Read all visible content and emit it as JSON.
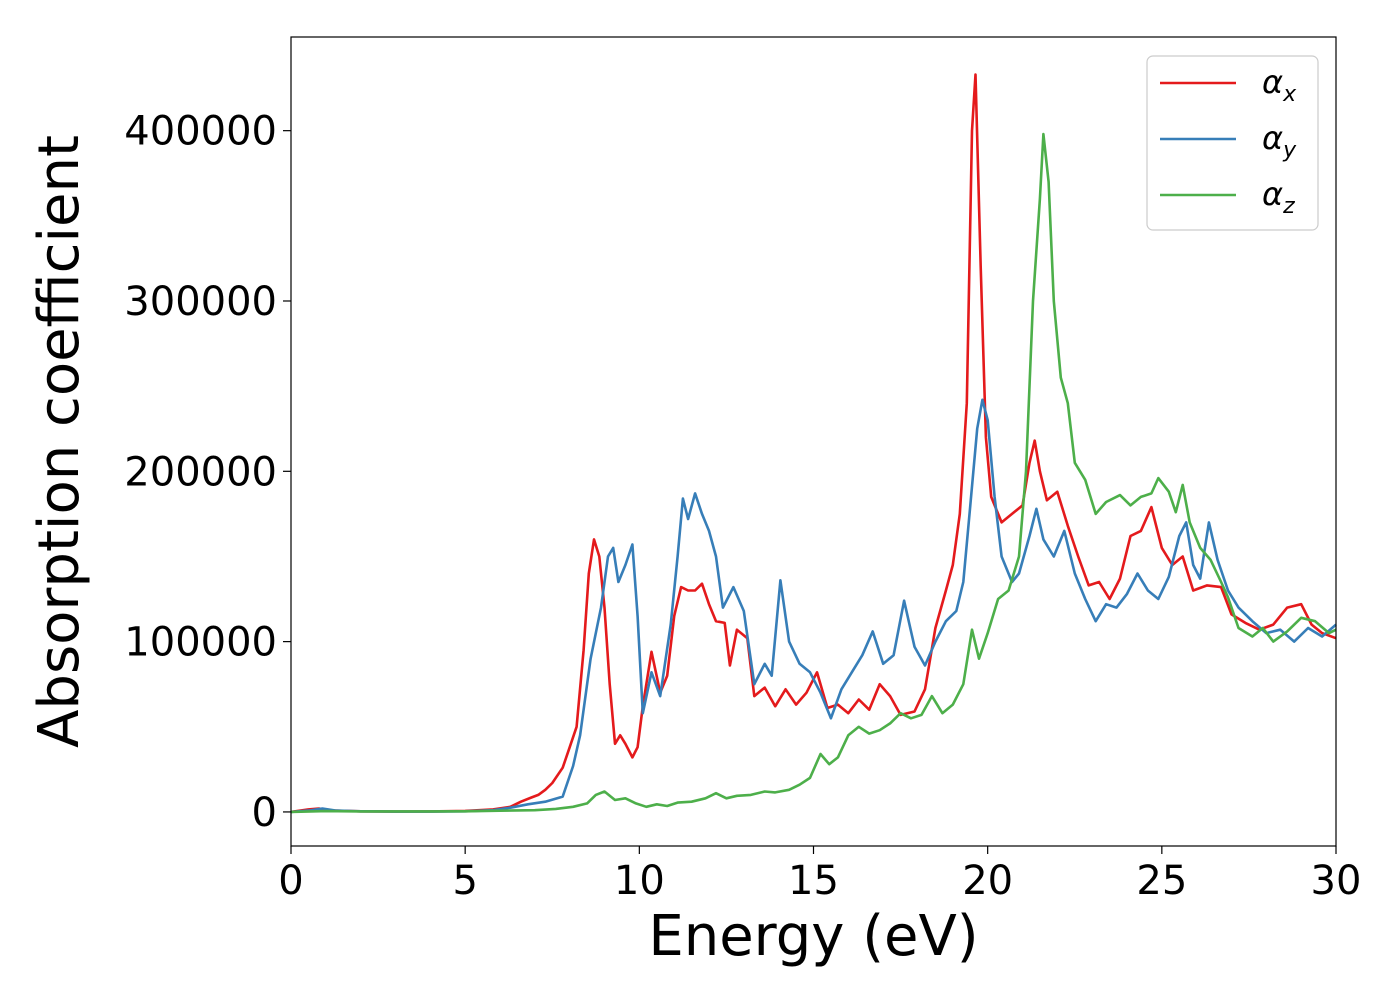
{
  "chart_data": {
    "type": "line",
    "title": "",
    "xlabel": "Energy (eV)",
    "ylabel": "Absorption coefficient",
    "xlim": [
      0,
      30
    ],
    "ylim": [
      -20000,
      455000
    ],
    "xticks": [
      0,
      5,
      10,
      15,
      20,
      25,
      30
    ],
    "yticks": [
      0,
      100000,
      200000,
      300000,
      400000
    ],
    "grid": false,
    "legend_position": "top-right",
    "series": [
      {
        "name": "α",
        "subscript": "x",
        "color": "#e41a1c",
        "points": [
          [
            0,
            0
          ],
          [
            0.5,
            1500
          ],
          [
            0.8,
            2000
          ],
          [
            1.2,
            800
          ],
          [
            2,
            400
          ],
          [
            3,
            200
          ],
          [
            4,
            300
          ],
          [
            5,
            600
          ],
          [
            5.8,
            1500
          ],
          [
            6.3,
            3000
          ],
          [
            6.6,
            6000
          ],
          [
            6.9,
            8500
          ],
          [
            7.1,
            10000
          ],
          [
            7.3,
            13000
          ],
          [
            7.5,
            17000
          ],
          [
            7.8,
            26000
          ],
          [
            8.0,
            38000
          ],
          [
            8.2,
            50000
          ],
          [
            8.4,
            95000
          ],
          [
            8.55,
            140000
          ],
          [
            8.7,
            160000
          ],
          [
            8.85,
            150000
          ],
          [
            9.0,
            120000
          ],
          [
            9.15,
            75000
          ],
          [
            9.3,
            40000
          ],
          [
            9.45,
            45000
          ],
          [
            9.6,
            40000
          ],
          [
            9.8,
            32000
          ],
          [
            9.95,
            38000
          ],
          [
            10.1,
            62000
          ],
          [
            10.35,
            94000
          ],
          [
            10.6,
            70000
          ],
          [
            10.8,
            80000
          ],
          [
            11.0,
            115000
          ],
          [
            11.2,
            132000
          ],
          [
            11.4,
            130000
          ],
          [
            11.6,
            130000
          ],
          [
            11.8,
            134000
          ],
          [
            12.0,
            122000
          ],
          [
            12.2,
            112000
          ],
          [
            12.45,
            111000
          ],
          [
            12.6,
            86000
          ],
          [
            12.8,
            107000
          ],
          [
            13.1,
            102000
          ],
          [
            13.3,
            68000
          ],
          [
            13.6,
            73000
          ],
          [
            13.9,
            62000
          ],
          [
            14.2,
            72000
          ],
          [
            14.5,
            63000
          ],
          [
            14.8,
            70000
          ],
          [
            15.1,
            82000
          ],
          [
            15.4,
            61000
          ],
          [
            15.7,
            63000
          ],
          [
            16.0,
            58000
          ],
          [
            16.3,
            66000
          ],
          [
            16.6,
            60000
          ],
          [
            16.9,
            75000
          ],
          [
            17.2,
            68000
          ],
          [
            17.5,
            57000
          ],
          [
            17.9,
            59000
          ],
          [
            18.2,
            72000
          ],
          [
            18.5,
            108000
          ],
          [
            18.8,
            130000
          ],
          [
            19.0,
            145000
          ],
          [
            19.2,
            175000
          ],
          [
            19.4,
            240000
          ],
          [
            19.55,
            400000
          ],
          [
            19.65,
            433000
          ],
          [
            19.8,
            320000
          ],
          [
            19.95,
            220000
          ],
          [
            20.1,
            185000
          ],
          [
            20.4,
            170000
          ],
          [
            20.7,
            175000
          ],
          [
            21.0,
            180000
          ],
          [
            21.2,
            205000
          ],
          [
            21.35,
            218000
          ],
          [
            21.5,
            200000
          ],
          [
            21.7,
            183000
          ],
          [
            22.0,
            188000
          ],
          [
            22.3,
            168000
          ],
          [
            22.6,
            150000
          ],
          [
            22.9,
            133000
          ],
          [
            23.2,
            135000
          ],
          [
            23.5,
            125000
          ],
          [
            23.8,
            137000
          ],
          [
            24.1,
            162000
          ],
          [
            24.4,
            165000
          ],
          [
            24.7,
            179000
          ],
          [
            25.0,
            155000
          ],
          [
            25.3,
            145000
          ],
          [
            25.6,
            150000
          ],
          [
            25.9,
            130000
          ],
          [
            26.3,
            133000
          ],
          [
            26.7,
            132000
          ],
          [
            27.0,
            116000
          ],
          [
            27.4,
            111000
          ],
          [
            27.8,
            107000
          ],
          [
            28.2,
            110000
          ],
          [
            28.6,
            120000
          ],
          [
            29.0,
            122000
          ],
          [
            29.3,
            110000
          ],
          [
            29.6,
            105000
          ],
          [
            30.0,
            102000
          ]
        ]
      },
      {
        "name": "α",
        "subscript": "y",
        "color": "#377eb8",
        "points": [
          [
            0,
            0
          ],
          [
            0.5,
            800
          ],
          [
            0.9,
            2000
          ],
          [
            1.3,
            800
          ],
          [
            2,
            400
          ],
          [
            3,
            200
          ],
          [
            4,
            200
          ],
          [
            5,
            400
          ],
          [
            5.8,
            1000
          ],
          [
            6.3,
            2500
          ],
          [
            6.8,
            4500
          ],
          [
            7.3,
            6000
          ],
          [
            7.8,
            9000
          ],
          [
            8.1,
            27000
          ],
          [
            8.3,
            45000
          ],
          [
            8.6,
            90000
          ],
          [
            8.9,
            120000
          ],
          [
            9.1,
            150000
          ],
          [
            9.25,
            155000
          ],
          [
            9.4,
            135000
          ],
          [
            9.6,
            145000
          ],
          [
            9.8,
            157000
          ],
          [
            9.95,
            115000
          ],
          [
            10.1,
            58000
          ],
          [
            10.35,
            82000
          ],
          [
            10.6,
            68000
          ],
          [
            10.9,
            110000
          ],
          [
            11.1,
            150000
          ],
          [
            11.25,
            184000
          ],
          [
            11.4,
            172000
          ],
          [
            11.6,
            187000
          ],
          [
            11.8,
            175000
          ],
          [
            12.0,
            165000
          ],
          [
            12.2,
            150000
          ],
          [
            12.4,
            120000
          ],
          [
            12.7,
            132000
          ],
          [
            13.0,
            118000
          ],
          [
            13.3,
            75000
          ],
          [
            13.6,
            87000
          ],
          [
            13.8,
            80000
          ],
          [
            14.05,
            136000
          ],
          [
            14.3,
            100000
          ],
          [
            14.6,
            87000
          ],
          [
            14.9,
            82000
          ],
          [
            15.2,
            70000
          ],
          [
            15.5,
            55000
          ],
          [
            15.8,
            72000
          ],
          [
            16.1,
            82000
          ],
          [
            16.4,
            92000
          ],
          [
            16.7,
            106000
          ],
          [
            17.0,
            87000
          ],
          [
            17.3,
            92000
          ],
          [
            17.6,
            124000
          ],
          [
            17.9,
            97000
          ],
          [
            18.2,
            86000
          ],
          [
            18.5,
            100000
          ],
          [
            18.8,
            112000
          ],
          [
            19.1,
            118000
          ],
          [
            19.3,
            135000
          ],
          [
            19.5,
            180000
          ],
          [
            19.7,
            225000
          ],
          [
            19.85,
            242000
          ],
          [
            20.0,
            230000
          ],
          [
            20.2,
            185000
          ],
          [
            20.4,
            150000
          ],
          [
            20.7,
            135000
          ],
          [
            20.9,
            140000
          ],
          [
            21.2,
            162000
          ],
          [
            21.4,
            178000
          ],
          [
            21.6,
            160000
          ],
          [
            21.9,
            150000
          ],
          [
            22.2,
            165000
          ],
          [
            22.5,
            140000
          ],
          [
            22.8,
            125000
          ],
          [
            23.1,
            112000
          ],
          [
            23.4,
            122000
          ],
          [
            23.7,
            120000
          ],
          [
            24.0,
            128000
          ],
          [
            24.3,
            140000
          ],
          [
            24.6,
            130000
          ],
          [
            24.9,
            125000
          ],
          [
            25.2,
            138000
          ],
          [
            25.5,
            162000
          ],
          [
            25.7,
            170000
          ],
          [
            25.9,
            145000
          ],
          [
            26.1,
            137000
          ],
          [
            26.35,
            170000
          ],
          [
            26.6,
            148000
          ],
          [
            26.9,
            130000
          ],
          [
            27.2,
            120000
          ],
          [
            27.6,
            112000
          ],
          [
            28.0,
            105000
          ],
          [
            28.4,
            107000
          ],
          [
            28.8,
            100000
          ],
          [
            29.2,
            108000
          ],
          [
            29.6,
            103000
          ],
          [
            30.0,
            110000
          ]
        ]
      },
      {
        "name": "α",
        "subscript": "z",
        "color": "#4daf4a",
        "points": [
          [
            0,
            0
          ],
          [
            1,
            500
          ],
          [
            2,
            300
          ],
          [
            3,
            300
          ],
          [
            4,
            300
          ],
          [
            5,
            400
          ],
          [
            6,
            700
          ],
          [
            7,
            1000
          ],
          [
            7.6,
            1800
          ],
          [
            8.1,
            3000
          ],
          [
            8.5,
            5000
          ],
          [
            8.75,
            10000
          ],
          [
            9.0,
            12000
          ],
          [
            9.3,
            7000
          ],
          [
            9.6,
            8000
          ],
          [
            9.9,
            5000
          ],
          [
            10.2,
            3000
          ],
          [
            10.5,
            4500
          ],
          [
            10.8,
            3500
          ],
          [
            11.1,
            5500
          ],
          [
            11.5,
            6000
          ],
          [
            11.9,
            8000
          ],
          [
            12.2,
            11000
          ],
          [
            12.5,
            8000
          ],
          [
            12.8,
            9500
          ],
          [
            13.2,
            10000
          ],
          [
            13.6,
            12000
          ],
          [
            13.9,
            11500
          ],
          [
            14.3,
            13000
          ],
          [
            14.6,
            16000
          ],
          [
            14.9,
            20000
          ],
          [
            15.2,
            34000
          ],
          [
            15.45,
            28000
          ],
          [
            15.7,
            32000
          ],
          [
            16.0,
            45000
          ],
          [
            16.3,
            50000
          ],
          [
            16.6,
            46000
          ],
          [
            16.9,
            48000
          ],
          [
            17.2,
            52000
          ],
          [
            17.5,
            58000
          ],
          [
            17.8,
            55000
          ],
          [
            18.1,
            57000
          ],
          [
            18.4,
            68000
          ],
          [
            18.7,
            58000
          ],
          [
            19.0,
            63000
          ],
          [
            19.3,
            75000
          ],
          [
            19.55,
            107000
          ],
          [
            19.75,
            90000
          ],
          [
            20.0,
            105000
          ],
          [
            20.3,
            125000
          ],
          [
            20.6,
            130000
          ],
          [
            20.9,
            150000
          ],
          [
            21.1,
            200000
          ],
          [
            21.3,
            300000
          ],
          [
            21.5,
            360000
          ],
          [
            21.6,
            398000
          ],
          [
            21.75,
            370000
          ],
          [
            21.9,
            300000
          ],
          [
            22.1,
            255000
          ],
          [
            22.3,
            240000
          ],
          [
            22.5,
            205000
          ],
          [
            22.8,
            195000
          ],
          [
            23.1,
            175000
          ],
          [
            23.4,
            182000
          ],
          [
            23.8,
            186000
          ],
          [
            24.1,
            180000
          ],
          [
            24.4,
            185000
          ],
          [
            24.7,
            187000
          ],
          [
            24.9,
            196000
          ],
          [
            25.2,
            188000
          ],
          [
            25.4,
            176000
          ],
          [
            25.6,
            192000
          ],
          [
            25.8,
            170000
          ],
          [
            26.1,
            155000
          ],
          [
            26.4,
            148000
          ],
          [
            26.7,
            135000
          ],
          [
            26.9,
            126000
          ],
          [
            27.2,
            108000
          ],
          [
            27.6,
            103000
          ],
          [
            27.9,
            108000
          ],
          [
            28.2,
            100000
          ],
          [
            28.6,
            106000
          ],
          [
            29.0,
            114000
          ],
          [
            29.4,
            112000
          ],
          [
            29.8,
            105000
          ],
          [
            30.0,
            107000
          ]
        ]
      }
    ]
  }
}
